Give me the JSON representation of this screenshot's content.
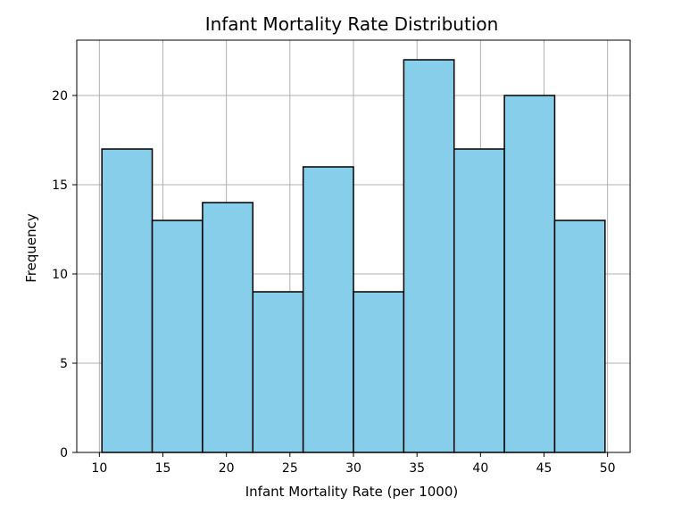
{
  "chart_data": {
    "type": "bar",
    "title": "Infant Mortality Rate Distribution",
    "xlabel": "Infant Mortality Rate (per 1000)",
    "ylabel": "Frequency",
    "bins": [
      {
        "start": 10.2,
        "end": 14.16,
        "count": 17
      },
      {
        "start": 14.16,
        "end": 18.12,
        "count": 13
      },
      {
        "start": 18.12,
        "end": 22.08,
        "count": 14
      },
      {
        "start": 22.08,
        "end": 26.04,
        "count": 9
      },
      {
        "start": 26.04,
        "end": 30.0,
        "count": 16
      },
      {
        "start": 30.0,
        "end": 33.96,
        "count": 9
      },
      {
        "start": 33.96,
        "end": 37.92,
        "count": 22
      },
      {
        "start": 37.92,
        "end": 41.88,
        "count": 17
      },
      {
        "start": 41.88,
        "end": 45.84,
        "count": 20
      },
      {
        "start": 45.84,
        "end": 49.8,
        "count": 13
      }
    ],
    "xlim": [
      8.22,
      51.78
    ],
    "ylim": [
      0,
      23.1
    ],
    "xticks": [
      10,
      15,
      20,
      25,
      30,
      35,
      40,
      45,
      50
    ],
    "yticks": [
      0,
      5,
      10,
      15,
      20
    ],
    "grid": true,
    "colors": {
      "bar_fill": "#87ceeb",
      "bar_edge": "#000000",
      "grid": "#b0b0b0",
      "axes": "#000000"
    }
  }
}
